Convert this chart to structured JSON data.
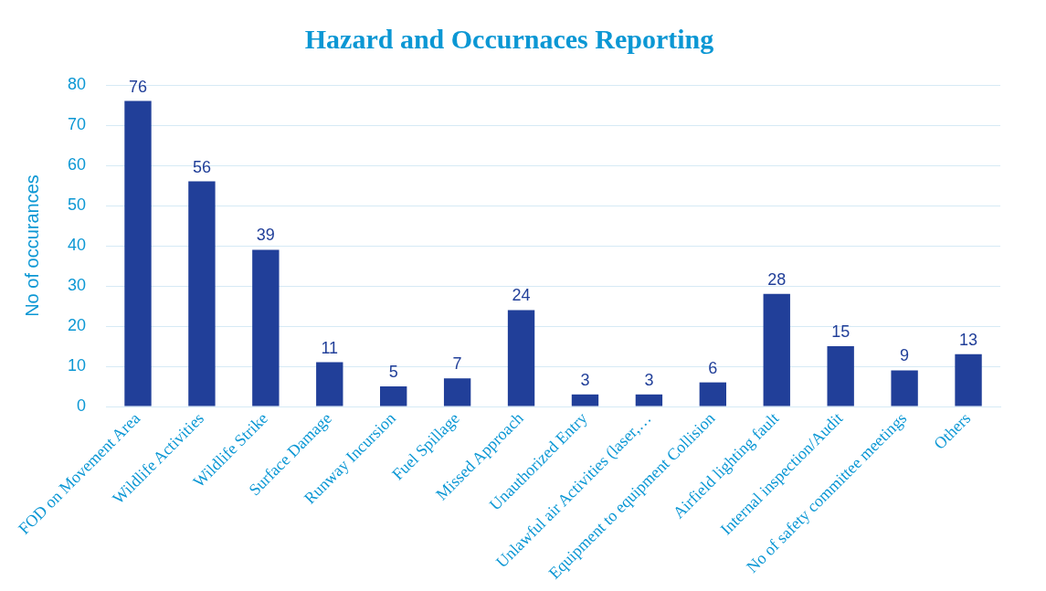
{
  "chart_data": {
    "type": "bar",
    "title": "Hazard and Occurnaces Reporting",
    "ylabel": "No of occurances",
    "categories": [
      "FOD on Movement Area",
      "Wildlife Activities",
      "Wildlife Strike",
      "Surface Damage",
      "Runway Incursion",
      "Fuel Spillage",
      "Missed Approach",
      "Unauthorized Entry",
      "Unlawful air Activities (laser,…",
      "Equipment to equipment Collision",
      "Airfield lighting fault",
      "Internal inspection/Audit",
      "No of safety committee meetings",
      "Others"
    ],
    "values": [
      76,
      56,
      39,
      11,
      5,
      7,
      24,
      3,
      3,
      6,
      28,
      15,
      9,
      13
    ],
    "color": "#213f99",
    "ylim": [
      0,
      80
    ],
    "yticks": [
      0,
      10,
      20,
      30,
      40,
      50,
      60,
      70,
      80
    ],
    "grid": "y",
    "data_labels": true,
    "legend": false
  }
}
